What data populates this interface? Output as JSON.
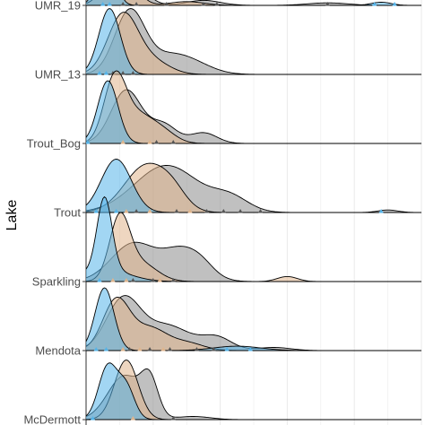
{
  "chart_data": {
    "type": "ridgeline",
    "title": "",
    "xlabel": "",
    "ylabel": "Lake",
    "x_range": [
      0,
      10
    ],
    "grid": true,
    "colors": {
      "blue": "#56B4E9",
      "tan": "#E0B58C",
      "gray": "#8C8C8C",
      "grid": "#ebebeb",
      "outline": "#000000",
      "axis": "#333333"
    },
    "lakes": [
      {
        "name": "UMR_19",
        "curves": [
          {
            "group": "gray",
            "components": [
              [
                1.0,
                0.5,
                0.8
              ],
              [
                3.5,
                0.5,
                0.08
              ],
              [
                7.2,
                0.6,
                0.04
              ]
            ]
          },
          {
            "group": "tan",
            "components": [
              [
                1.0,
                0.4,
                0.7
              ],
              [
                3.0,
                0.5,
                0.06
              ]
            ]
          },
          {
            "group": "blue",
            "components": [
              [
                0.6,
                0.25,
                0.9
              ],
              [
                8.8,
                0.3,
                0.05
              ]
            ]
          }
        ],
        "points": [
          {
            "group": "blue",
            "values": [
              0.5,
              0.7,
              8.6,
              9.2
            ]
          },
          {
            "group": "gray",
            "values": [
              1.1,
              1.5,
              2.4,
              3.5,
              3.9,
              7.2
            ]
          }
        ]
      },
      {
        "name": "UMR_13",
        "curves": [
          {
            "group": "gray",
            "components": [
              [
                1.3,
                0.45,
                1.0
              ],
              [
                2.4,
                0.6,
                0.25
              ],
              [
                3.2,
                0.6,
                0.15
              ]
            ]
          },
          {
            "group": "tan",
            "components": [
              [
                1.1,
                0.45,
                0.95
              ],
              [
                2.0,
                0.5,
                0.2
              ]
            ]
          },
          {
            "group": "blue",
            "components": [
              [
                0.7,
                0.32,
                1.05
              ]
            ]
          }
        ],
        "points": [
          {
            "group": "blue",
            "values": [
              0.4,
              0.6
            ]
          },
          {
            "group": "gray",
            "values": [
              0.8,
              1.1,
              1.4
            ]
          }
        ]
      },
      {
        "name": "Trout_Bog",
        "curves": [
          {
            "group": "gray",
            "components": [
              [
                1.2,
                0.45,
                0.85
              ],
              [
                2.3,
                0.4,
                0.3
              ],
              [
                3.5,
                0.4,
                0.17
              ]
            ]
          },
          {
            "group": "tan",
            "components": [
              [
                0.85,
                0.32,
                0.95
              ],
              [
                1.5,
                0.5,
                0.45
              ],
              [
                2.3,
                0.4,
                0.15
              ]
            ]
          },
          {
            "group": "blue",
            "components": [
              [
                0.65,
                0.3,
                1.0
              ]
            ]
          }
        ],
        "points": [
          {
            "group": "blue",
            "values": [
              0.05
            ]
          },
          {
            "group": "tan",
            "values": [
              1.1,
              1.9
            ]
          },
          {
            "group": "gray",
            "values": [
              2.1,
              2.6
            ]
          }
        ]
      },
      {
        "name": "Trout",
        "curves": [
          {
            "group": "gray",
            "components": [
              [
                2.4,
                0.95,
                0.75
              ],
              [
                4.3,
                0.55,
                0.22
              ],
              [
                9.0,
                0.3,
                0.04
              ]
            ]
          },
          {
            "group": "tan",
            "components": [
              [
                1.8,
                0.65,
                0.75
              ],
              [
                2.6,
                0.4,
                0.2
              ]
            ]
          },
          {
            "group": "blue",
            "components": [
              [
                0.9,
                0.45,
                0.85
              ]
            ]
          }
        ],
        "points": [
          {
            "group": "blue",
            "values": [
              0.3,
              0.9,
              8.8
            ]
          },
          {
            "group": "tan",
            "values": [
              1.2,
              1.9,
              3.1
            ]
          },
          {
            "group": "gray",
            "values": [
              1.5,
              2.7,
              3.6,
              4.1,
              4.6,
              5.2
            ]
          }
        ]
      },
      {
        "name": "Sparkling",
        "curves": [
          {
            "group": "gray",
            "components": [
              [
                1.4,
                0.65,
                0.6
              ],
              [
                2.9,
                0.6,
                0.5
              ],
              [
                3.5,
                0.35,
                0.08
              ]
            ]
          },
          {
            "group": "tan",
            "components": [
              [
                1.0,
                0.3,
                0.95
              ],
              [
                1.6,
                0.5,
                0.3
              ],
              [
                6.0,
                0.3,
                0.08
              ]
            ]
          },
          {
            "group": "blue",
            "components": [
              [
                0.55,
                0.22,
                1.15
              ],
              [
                0.55,
                0.7,
                0.2
              ]
            ]
          }
        ],
        "points": [
          {
            "group": "blue",
            "values": [
              0.4
            ]
          },
          {
            "group": "tan",
            "values": [
              0.8,
              1.2,
              2.2
            ]
          },
          {
            "group": "gray",
            "values": [
              1.4,
              2.0,
              2.6
            ]
          }
        ]
      },
      {
        "name": "Mendota",
        "curves": [
          {
            "group": "gray",
            "components": [
              [
                1.1,
                0.5,
                0.8
              ],
              [
                2.4,
                0.7,
                0.4
              ],
              [
                3.9,
                0.45,
                0.2
              ],
              [
                5.6,
                0.5,
                0.05
              ]
            ]
          },
          {
            "group": "tan",
            "components": [
              [
                0.9,
                0.4,
                0.8
              ],
              [
                1.9,
                0.5,
                0.35
              ],
              [
                3.0,
                0.5,
                0.12
              ]
            ]
          },
          {
            "group": "blue",
            "components": [
              [
                0.55,
                0.28,
                1.0
              ],
              [
                4.5,
                0.7,
                0.07
              ]
            ]
          }
        ],
        "points": [
          {
            "group": "blue",
            "values": [
              0.3,
              0.6,
              4.2,
              4.9
            ]
          },
          {
            "group": "tan",
            "values": [
              1.1,
              1.6,
              2.3
            ]
          },
          {
            "group": "gray",
            "values": [
              1.3,
              1.9,
              2.5,
              3.3,
              3.8
            ]
          }
        ]
      },
      {
        "name": "McDermott",
        "curves": [
          {
            "group": "gray",
            "components": [
              [
                1.15,
                0.5,
                0.7
              ],
              [
                1.9,
                0.25,
                0.55
              ],
              [
                3.2,
                0.5,
                0.05
              ]
            ]
          },
          {
            "group": "tan",
            "components": [
              [
                1.2,
                0.35,
                0.95
              ]
            ]
          },
          {
            "group": "blue",
            "components": [
              [
                0.65,
                0.28,
                0.85
              ],
              [
                1.2,
                0.25,
                0.5
              ]
            ]
          }
        ],
        "points": [
          {
            "group": "blue",
            "values": [
              0.2
            ]
          },
          {
            "group": "tan",
            "values": [
              1.4
            ]
          },
          {
            "group": "gray",
            "values": [
              2.6
            ]
          }
        ]
      }
    ]
  }
}
